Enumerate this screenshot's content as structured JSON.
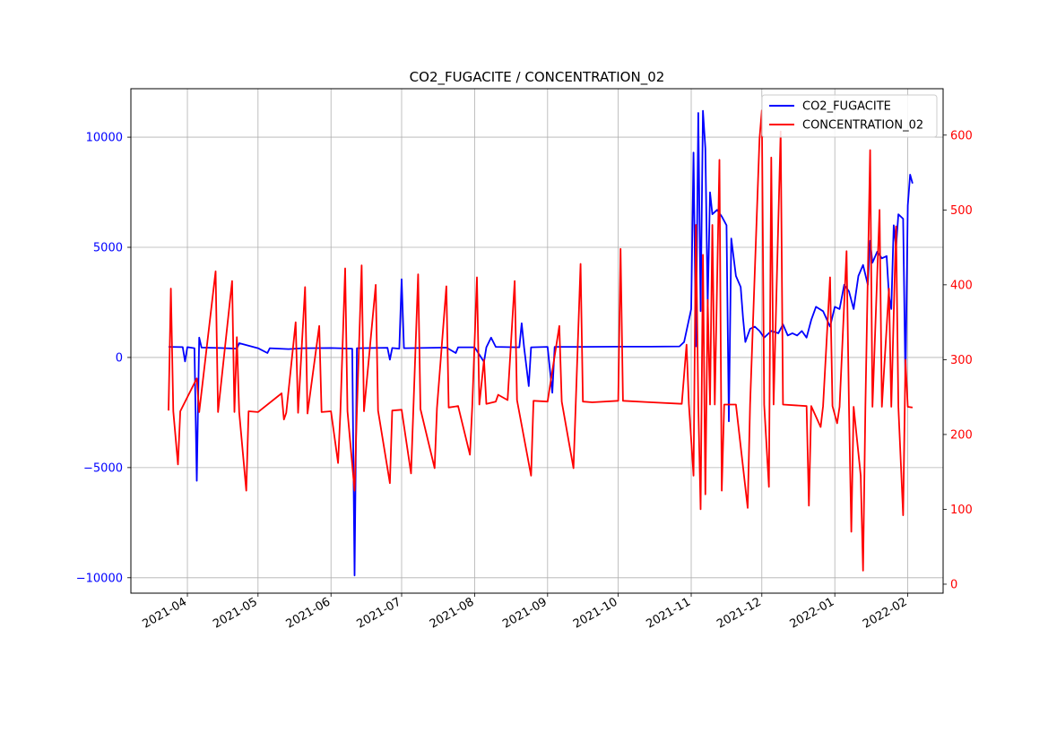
{
  "chart_data": {
    "type": "line",
    "title": "CO2_FUGACITE / CONCENTRATION_02",
    "xlabel": "",
    "ylabel": "",
    "x_axis": {
      "type": "date",
      "range": [
        "2021-03-08",
        "2022-02-16"
      ],
      "ticks": [
        "2021-04",
        "2021-05",
        "2021-06",
        "2021-07",
        "2021-08",
        "2021-09",
        "2021-10",
        "2021-11",
        "2021-12",
        "2022-01",
        "2022-02"
      ]
    },
    "y_axis_left": {
      "range": [
        -10700,
        12200
      ],
      "ticks": [
        -10000,
        -5000,
        0,
        5000,
        10000
      ],
      "tick_labels": [
        "−10000",
        "−5000",
        "0",
        "5000",
        "10000"
      ],
      "color": "#0000ff"
    },
    "y_axis_right": {
      "range": [
        -12,
        662
      ],
      "ticks": [
        0,
        100,
        200,
        300,
        400,
        500,
        600
      ],
      "tick_labels": [
        "0",
        "100",
        "200",
        "300",
        "400",
        "500",
        "600"
      ],
      "color": "#ff0000"
    },
    "grid": true,
    "legend_position": "top-right",
    "series": [
      {
        "name": "CO2_FUGACITE",
        "axis": "left",
        "color": "#0000ff",
        "points": [
          [
            "2021-03-24",
            480
          ],
          [
            "2021-03-30",
            470
          ],
          [
            "2021-03-31",
            -180
          ],
          [
            "2021-04-01",
            470
          ],
          [
            "2021-04-04",
            420
          ],
          [
            "2021-04-05",
            -5600
          ],
          [
            "2021-04-06",
            900
          ],
          [
            "2021-04-07",
            450
          ],
          [
            "2021-04-15",
            430
          ],
          [
            "2021-04-22",
            400
          ],
          [
            "2021-04-23",
            650
          ],
          [
            "2021-05-01",
            420
          ],
          [
            "2021-05-05",
            200
          ],
          [
            "2021-05-06",
            420
          ],
          [
            "2021-05-14",
            380
          ],
          [
            "2021-05-20",
            420
          ],
          [
            "2021-06-01",
            430
          ],
          [
            "2021-06-10",
            400
          ],
          [
            "2021-06-11",
            -9900
          ],
          [
            "2021-06-12",
            420
          ],
          [
            "2021-06-25",
            440
          ],
          [
            "2021-06-26",
            -100
          ],
          [
            "2021-06-27",
            430
          ],
          [
            "2021-06-30",
            400
          ],
          [
            "2021-07-01",
            3550
          ],
          [
            "2021-07-02",
            420
          ],
          [
            "2021-07-20",
            450
          ],
          [
            "2021-07-24",
            200
          ],
          [
            "2021-07-25",
            460
          ],
          [
            "2021-08-01",
            460
          ],
          [
            "2021-08-05",
            -200
          ],
          [
            "2021-08-06",
            460
          ],
          [
            "2021-08-08",
            900
          ],
          [
            "2021-08-10",
            480
          ],
          [
            "2021-08-20",
            460
          ],
          [
            "2021-08-21",
            1550
          ],
          [
            "2021-08-22",
            460
          ],
          [
            "2021-08-24",
            -1300
          ],
          [
            "2021-08-25",
            460
          ],
          [
            "2021-09-01",
            480
          ],
          [
            "2021-09-03",
            -1600
          ],
          [
            "2021-09-04",
            480
          ],
          [
            "2021-09-15",
            480
          ],
          [
            "2021-10-01",
            490
          ],
          [
            "2021-10-15",
            490
          ],
          [
            "2021-10-27",
            500
          ],
          [
            "2021-10-29",
            700
          ],
          [
            "2021-11-01",
            2200
          ],
          [
            "2021-11-02",
            9300
          ],
          [
            "2021-11-03",
            500
          ],
          [
            "2021-11-04",
            11100
          ],
          [
            "2021-11-05",
            2100
          ],
          [
            "2021-11-06",
            11200
          ],
          [
            "2021-11-07",
            9500
          ],
          [
            "2021-11-08",
            2400
          ],
          [
            "2021-11-09",
            7500
          ],
          [
            "2021-11-10",
            6500
          ],
          [
            "2021-11-12",
            6700
          ],
          [
            "2021-11-14",
            6400
          ],
          [
            "2021-11-16",
            6000
          ],
          [
            "2021-11-17",
            -2900
          ],
          [
            "2021-11-18",
            5400
          ],
          [
            "2021-11-20",
            3700
          ],
          [
            "2021-11-22",
            3200
          ],
          [
            "2021-11-23",
            1800
          ],
          [
            "2021-11-24",
            700
          ],
          [
            "2021-11-26",
            1300
          ],
          [
            "2021-11-28",
            1400
          ],
          [
            "2021-11-30",
            1200
          ],
          [
            "2021-12-02",
            900
          ],
          [
            "2021-12-05",
            1200
          ],
          [
            "2021-12-08",
            1100
          ],
          [
            "2021-12-10",
            1500
          ],
          [
            "2021-12-12",
            1000
          ],
          [
            "2021-12-14",
            1100
          ],
          [
            "2021-12-16",
            1000
          ],
          [
            "2021-12-18",
            1200
          ],
          [
            "2021-12-20",
            900
          ],
          [
            "2021-12-22",
            1700
          ],
          [
            "2021-12-24",
            2300
          ],
          [
            "2021-12-27",
            2100
          ],
          [
            "2021-12-30",
            1400
          ],
          [
            "2022-01-01",
            2300
          ],
          [
            "2022-01-03",
            2200
          ],
          [
            "2022-01-05",
            3300
          ],
          [
            "2022-01-07",
            3000
          ],
          [
            "2022-01-09",
            2200
          ],
          [
            "2022-01-11",
            3700
          ],
          [
            "2022-01-13",
            4200
          ],
          [
            "2022-01-15",
            3300
          ],
          [
            "2022-01-16",
            5300
          ],
          [
            "2022-01-17",
            4300
          ],
          [
            "2022-01-19",
            4800
          ],
          [
            "2022-01-21",
            4500
          ],
          [
            "2022-01-23",
            4600
          ],
          [
            "2022-01-24",
            2800
          ],
          [
            "2022-01-25",
            2200
          ],
          [
            "2022-01-26",
            6000
          ],
          [
            "2022-01-27",
            5000
          ],
          [
            "2022-01-28",
            6500
          ],
          [
            "2022-01-29",
            6400
          ],
          [
            "2022-01-30",
            6300
          ],
          [
            "2022-01-31",
            -1200
          ],
          [
            "2022-02-01",
            6900
          ],
          [
            "2022-02-02",
            8300
          ],
          [
            "2022-02-03",
            7900
          ]
        ]
      },
      {
        "name": "CONCENTRATION_02",
        "axis": "right",
        "color": "#ff0000",
        "points": [
          [
            "2021-03-24",
            232
          ],
          [
            "2021-03-25",
            395
          ],
          [
            "2021-03-26",
            231
          ],
          [
            "2021-03-28",
            160
          ],
          [
            "2021-03-29",
            231
          ],
          [
            "2021-04-05",
            275
          ],
          [
            "2021-04-06",
            230
          ],
          [
            "2021-04-13",
            418
          ],
          [
            "2021-04-14",
            230
          ],
          [
            "2021-04-20",
            405
          ],
          [
            "2021-04-21",
            230
          ],
          [
            "2021-04-22",
            330
          ],
          [
            "2021-04-23",
            230
          ],
          [
            "2021-04-26",
            125
          ],
          [
            "2021-04-27",
            231
          ],
          [
            "2021-05-01",
            230
          ],
          [
            "2021-05-11",
            255
          ],
          [
            "2021-05-12",
            220
          ],
          [
            "2021-05-13",
            229
          ],
          [
            "2021-05-17",
            350
          ],
          [
            "2021-05-18",
            229
          ],
          [
            "2021-05-21",
            397
          ],
          [
            "2021-05-22",
            228
          ],
          [
            "2021-05-27",
            345
          ],
          [
            "2021-05-28",
            230
          ],
          [
            "2021-06-01",
            231
          ],
          [
            "2021-06-04",
            162
          ],
          [
            "2021-06-05",
            230
          ],
          [
            "2021-06-07",
            422
          ],
          [
            "2021-06-08",
            231
          ],
          [
            "2021-06-11",
            125
          ],
          [
            "2021-06-12",
            231
          ],
          [
            "2021-06-14",
            426
          ],
          [
            "2021-06-15",
            231
          ],
          [
            "2021-06-20",
            400
          ],
          [
            "2021-06-21",
            232
          ],
          [
            "2021-06-26",
            135
          ],
          [
            "2021-06-27",
            232
          ],
          [
            "2021-07-01",
            233
          ],
          [
            "2021-07-05",
            148
          ],
          [
            "2021-07-06",
            234
          ],
          [
            "2021-07-08",
            414
          ],
          [
            "2021-07-09",
            234
          ],
          [
            "2021-07-15",
            155
          ],
          [
            "2021-07-16",
            235
          ],
          [
            "2021-07-20",
            398
          ],
          [
            "2021-07-21",
            236
          ],
          [
            "2021-07-25",
            238
          ],
          [
            "2021-07-30",
            173
          ],
          [
            "2021-07-31",
            238
          ],
          [
            "2021-08-02",
            410
          ],
          [
            "2021-08-03",
            240
          ],
          [
            "2021-08-05",
            300
          ],
          [
            "2021-08-06",
            241
          ],
          [
            "2021-08-10",
            244
          ],
          [
            "2021-08-11",
            253
          ],
          [
            "2021-08-15",
            246
          ],
          [
            "2021-08-18",
            405
          ],
          [
            "2021-08-19",
            246
          ],
          [
            "2021-08-25",
            145
          ],
          [
            "2021-08-26",
            245
          ],
          [
            "2021-09-01",
            244
          ],
          [
            "2021-09-06",
            345
          ],
          [
            "2021-09-07",
            244
          ],
          [
            "2021-09-12",
            155
          ],
          [
            "2021-09-13",
            244
          ],
          [
            "2021-09-15",
            428
          ],
          [
            "2021-09-16",
            244
          ],
          [
            "2021-09-20",
            243
          ],
          [
            "2021-10-01",
            245
          ],
          [
            "2021-10-02",
            448
          ],
          [
            "2021-10-03",
            245
          ],
          [
            "2021-10-15",
            243
          ],
          [
            "2021-10-28",
            241
          ],
          [
            "2021-10-30",
            320
          ],
          [
            "2021-10-31",
            241
          ],
          [
            "2021-11-02",
            145
          ],
          [
            "2021-11-03",
            480
          ],
          [
            "2021-11-04",
            240
          ],
          [
            "2021-11-05",
            100
          ],
          [
            "2021-11-06",
            440
          ],
          [
            "2021-11-07",
            120
          ],
          [
            "2021-11-08",
            380
          ],
          [
            "2021-11-09",
            240
          ],
          [
            "2021-11-10",
            480
          ],
          [
            "2021-11-11",
            240
          ],
          [
            "2021-11-13",
            567
          ],
          [
            "2021-11-14",
            125
          ],
          [
            "2021-11-15",
            240
          ],
          [
            "2021-11-20",
            240
          ],
          [
            "2021-11-25",
            102
          ],
          [
            "2021-11-26",
            240
          ],
          [
            "2021-11-30",
            595
          ],
          [
            "2021-12-01",
            633
          ],
          [
            "2021-12-02",
            240
          ],
          [
            "2021-12-04",
            130
          ],
          [
            "2021-12-05",
            570
          ],
          [
            "2021-12-06",
            240
          ],
          [
            "2021-12-09",
            605
          ],
          [
            "2021-12-10",
            240
          ],
          [
            "2021-12-20",
            238
          ],
          [
            "2021-12-21",
            105
          ],
          [
            "2021-12-22",
            238
          ],
          [
            "2021-12-26",
            210
          ],
          [
            "2021-12-27",
            238
          ],
          [
            "2021-12-30",
            410
          ],
          [
            "2021-12-31",
            238
          ],
          [
            "2022-01-02",
            215
          ],
          [
            "2022-01-03",
            237
          ],
          [
            "2022-01-06",
            445
          ],
          [
            "2022-01-07",
            237
          ],
          [
            "2022-01-08",
            70
          ],
          [
            "2022-01-09",
            237
          ],
          [
            "2022-01-12",
            145
          ],
          [
            "2022-01-13",
            18
          ],
          [
            "2022-01-14",
            237
          ],
          [
            "2022-01-16",
            580
          ],
          [
            "2022-01-17",
            237
          ],
          [
            "2022-01-20",
            500
          ],
          [
            "2022-01-21",
            237
          ],
          [
            "2022-01-24",
            395
          ],
          [
            "2022-01-25",
            237
          ],
          [
            "2022-01-27",
            478
          ],
          [
            "2022-01-28",
            237
          ],
          [
            "2022-01-30",
            92
          ],
          [
            "2022-01-31",
            300
          ],
          [
            "2022-02-01",
            237
          ],
          [
            "2022-02-03",
            236
          ]
        ]
      }
    ]
  }
}
